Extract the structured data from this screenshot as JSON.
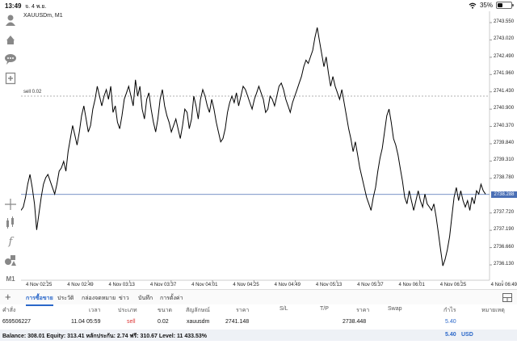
{
  "status_bar": {
    "time": "13:49",
    "date": "จ. 4 พ.ย.",
    "battery": "35%",
    "battery_level": 0.35
  },
  "chart": {
    "symbol": "XAUUSDm, M1",
    "order_line_label": "sell 0.02",
    "current_price": "2738.288",
    "y_ticks": [
      "2743.550",
      "2743.020",
      "2742.490",
      "2741.960",
      "2741.430",
      "2740.900",
      "2740.370",
      "2739.840",
      "2739.310",
      "2738.780",
      "2737.720",
      "2737.190",
      "2736.660",
      "2736.130"
    ],
    "x_ticks": [
      "4 Nov 02:25",
      "4 Nov 02:49",
      "4 Nov 03:13",
      "4 Nov 03:37",
      "4 Nov 04:01",
      "4 Nov 04:25",
      "4 Nov 04:49",
      "4 Nov 05:13",
      "4 Nov 05:37",
      "4 Nov 06:01",
      "4 Nov 06:25",
      "4 Nov 06:49"
    ],
    "line_color": "#000000",
    "order_line_color": "#999999",
    "price_line_color": "#4a6fb5"
  },
  "chart_data": {
    "type": "line",
    "title": "XAUUSDm, M1",
    "xlabel": "",
    "ylabel": "",
    "ylim": [
      2735.8,
      2744.0
    ],
    "x_range": [
      "4 Nov 02:25",
      "4 Nov 06:49"
    ],
    "series": [
      {
        "name": "",
        "values": [
          2737.8,
          2737.9,
          2738.2,
          2738.6,
          2738.9,
          2738.5,
          2738.0,
          2737.2,
          2737.7,
          2738.2,
          2738.6,
          2738.8,
          2738.9,
          2738.7,
          2738.5,
          2738.3,
          2738.6,
          2739.0,
          2739.1,
          2739.3,
          2739.0,
          2739.6,
          2740.0,
          2740.4,
          2740.1,
          2739.8,
          2740.2,
          2740.7,
          2741.0,
          2740.6,
          2740.2,
          2740.4,
          2740.9,
          2741.2,
          2741.6,
          2741.3,
          2741.0,
          2741.3,
          2741.5,
          2741.2,
          2741.6,
          2740.8,
          2741.0,
          2740.5,
          2740.3,
          2740.7,
          2741.2,
          2741.4,
          2741.6,
          2741.3,
          2741.0,
          2741.8,
          2741.3,
          2741.6,
          2740.9,
          2740.6,
          2741.2,
          2741.4,
          2740.9,
          2740.5,
          2740.2,
          2740.6,
          2741.2,
          2741.5,
          2741.0,
          2740.7,
          2740.5,
          2740.2,
          2740.4,
          2740.6,
          2740.3,
          2740.0,
          2740.4,
          2740.9,
          2740.8,
          2740.3,
          2740.6,
          2741.3,
          2741.0,
          2740.6,
          2741.2,
          2741.5,
          2741.3,
          2741.0,
          2740.8,
          2741.2,
          2740.9,
          2740.5,
          2740.2,
          2739.9,
          2740.0,
          2740.3,
          2740.8,
          2741.1,
          2741.3,
          2741.1,
          2741.4,
          2741.0,
          2741.3,
          2741.6,
          2741.5,
          2741.3,
          2741.1,
          2740.9,
          2741.2,
          2741.4,
          2741.6,
          2741.4,
          2741.2,
          2740.8,
          2740.9,
          2741.3,
          2741.2,
          2741.0,
          2741.3,
          2741.6,
          2741.7,
          2741.5,
          2741.2,
          2741.0,
          2740.8,
          2741.1,
          2741.3,
          2741.5,
          2741.7,
          2741.9,
          2742.2,
          2742.4,
          2742.3,
          2742.5,
          2742.7,
          2743.1,
          2743.4,
          2743.0,
          2742.6,
          2742.2,
          2742.5,
          2742.0,
          2741.6,
          2741.9,
          2741.6,
          2741.4,
          2741.2,
          2741.5,
          2741.1,
          2740.7,
          2740.3,
          2740.0,
          2739.6,
          2739.9,
          2739.5,
          2739.1,
          2738.8,
          2738.5,
          2738.2,
          2738.0,
          2737.8,
          2738.2,
          2738.5,
          2739.0,
          2739.4,
          2739.7,
          2740.2,
          2740.7,
          2740.9,
          2740.5,
          2740.0,
          2739.8,
          2739.5,
          2739.1,
          2738.7,
          2738.2,
          2738.0,
          2738.4,
          2738.1,
          2737.8,
          2738.1,
          2738.4,
          2738.1,
          2737.9,
          2738.3,
          2738.0,
          2737.9,
          2737.8,
          2738.0,
          2737.6,
          2737.1,
          2736.6,
          2736.1,
          2736.3,
          2736.6,
          2737.0,
          2737.6,
          2738.2,
          2738.5,
          2738.1,
          2738.4,
          2738.1,
          2737.9,
          2738.1,
          2737.8,
          2738.2,
          2738.0,
          2738.4,
          2738.3,
          2738.6,
          2738.4,
          2738.3
        ]
      }
    ],
    "order_level": 2741.3,
    "current_price": 2738.288,
    "grid": false
  },
  "toolbar": {
    "items": [
      {
        "name": "account-icon"
      },
      {
        "name": "trade-icon"
      },
      {
        "name": "chat-icon"
      },
      {
        "name": "add-chart-icon"
      },
      {
        "name": "crosshair-icon"
      },
      {
        "name": "indicators-icon"
      },
      {
        "name": "function-icon"
      },
      {
        "name": "objects-icon"
      }
    ],
    "timeframe": "M1"
  },
  "tabs": {
    "items": [
      "การซื้อขาย",
      "ประวัติ",
      "กล่องจดหมาย",
      "ข่าว",
      "บันทึก",
      "การตั้งค่า"
    ],
    "active": 0
  },
  "table": {
    "headers": [
      "คำสั่ง",
      "เวลา",
      "ประเภท",
      "ขนาด",
      "สัญลักษณ์",
      "ราคา",
      "S/L",
      "T/P",
      "ราคา",
      "Swap",
      "กำไร",
      "หมายเหตุ"
    ],
    "row": {
      "order": "659506227",
      "time": "11.04 05:59",
      "type": "sell",
      "size": "0.02",
      "symbol": "xauusdm",
      "price": "2741.148",
      "sl": "",
      "tp": "",
      "current_price": "2738.448",
      "swap": "",
      "profit": "5.40",
      "note": ""
    }
  },
  "balance": {
    "text": "Balance: 308.01 Equity: 313.41 หลักประกัน: 2.74 ฟรี: 310.67 Level: 11 433.53%",
    "profit": "5.40",
    "currency": "USD"
  }
}
